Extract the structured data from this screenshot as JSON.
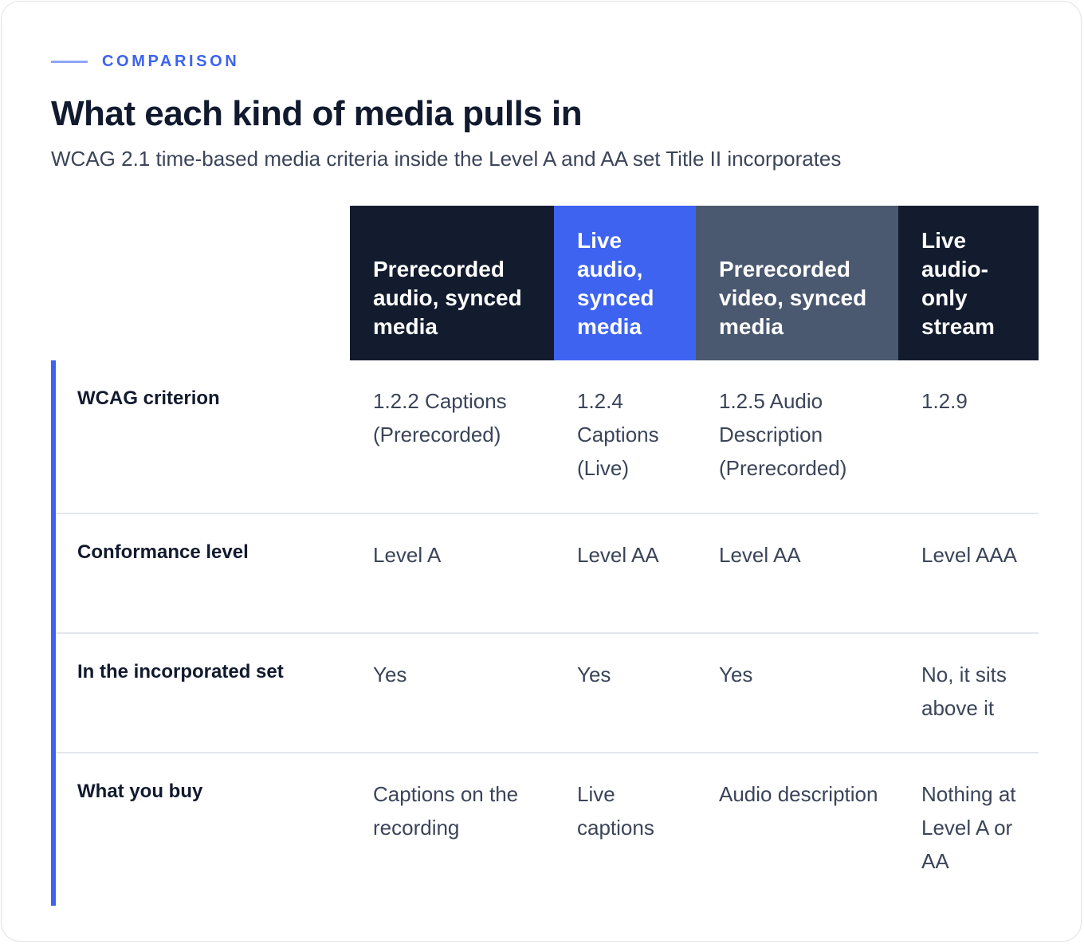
{
  "eyebrow": "COMPARISON",
  "title": "What each kind of media pulls in",
  "subtitle": "WCAG 2.1 time-based media criteria inside the Level A and AA set Title II incorporates",
  "colors": {
    "accent": "#3e63f0",
    "dark": "#121c2e",
    "slate": "#4a5870"
  },
  "table": {
    "columns": [
      "Prerecorded audio, synced media",
      "Live audio, synced media",
      "Prerecorded video, synced media",
      "Live audio-only stream"
    ],
    "rows": [
      {
        "label": "WCAG criterion",
        "cells": [
          "1.2.2 Captions (Prerecorded)",
          "1.2.4 Captions (Live)",
          "1.2.5 Audio Description (Prerecorded)",
          "1.2.9"
        ]
      },
      {
        "label": "Conformance level",
        "cells": [
          "Level A",
          "Level AA",
          "Level AA",
          "Level AAA"
        ]
      },
      {
        "label": "In the incorporated set",
        "cells": [
          "Yes",
          "Yes",
          "Yes",
          "No, it sits above it"
        ]
      },
      {
        "label": "What you buy",
        "cells": [
          "Captions on the recording",
          "Live captions",
          "Audio description",
          "Nothing at Level A or AA"
        ]
      }
    ]
  }
}
